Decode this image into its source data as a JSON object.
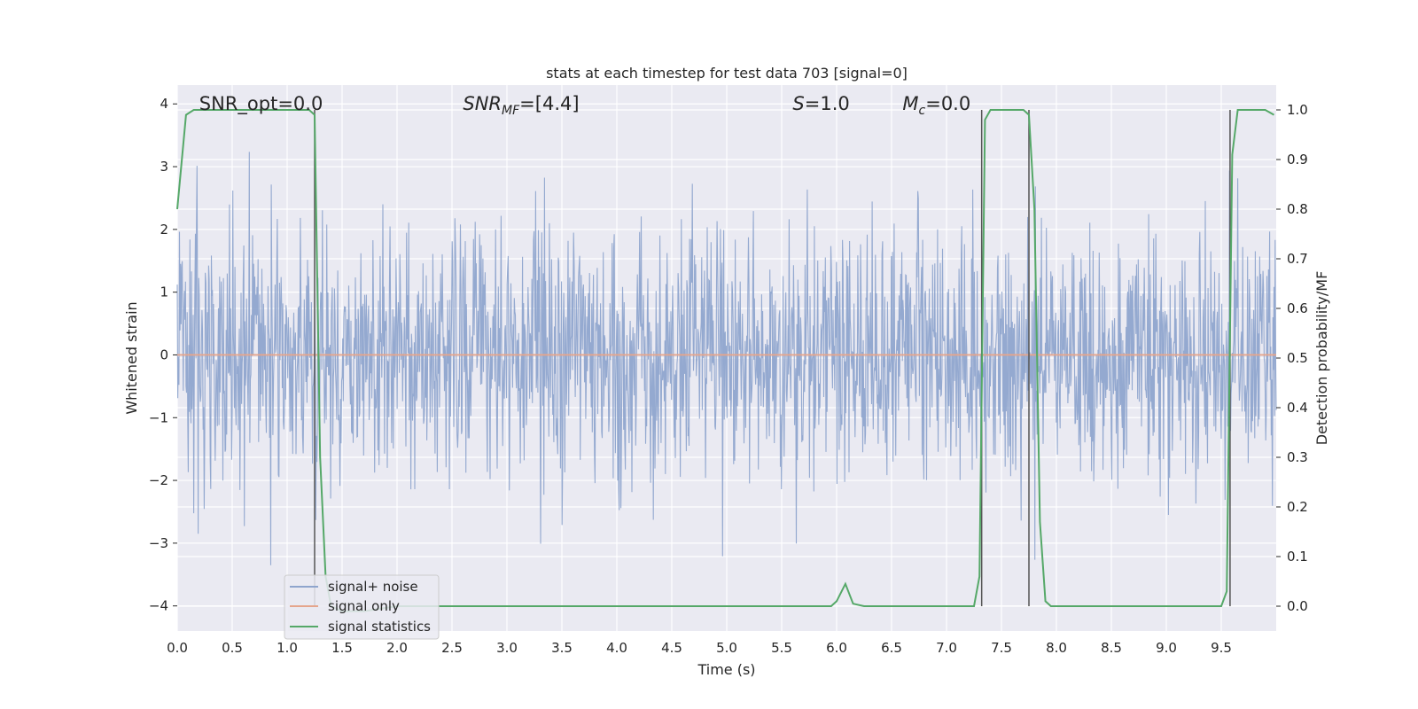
{
  "chart_data": {
    "type": "line",
    "title": "stats at each timestep for test data 703 [signal=0]",
    "xlabel": "Time (s)",
    "ylabel": "Whitened strain",
    "y2label": "Detection probability/MF",
    "xlim": [
      0.0,
      10.0
    ],
    "ylim": [
      -4.4,
      4.3
    ],
    "y2lim": [
      -0.05,
      1.05
    ],
    "xticks": [
      0.0,
      0.5,
      1.0,
      1.5,
      2.0,
      2.5,
      3.0,
      3.5,
      4.0,
      4.5,
      5.0,
      5.5,
      6.0,
      6.5,
      7.0,
      7.5,
      8.0,
      8.5,
      9.0,
      9.5
    ],
    "xtick_labels": [
      "0.0",
      "0.5",
      "1.0",
      "1.5",
      "2.0",
      "2.5",
      "3.0",
      "3.5",
      "4.0",
      "4.5",
      "5.0",
      "5.5",
      "6.0",
      "6.5",
      "7.0",
      "7.5",
      "8.0",
      "8.5",
      "9.0",
      "9.5"
    ],
    "yticks": [
      -4,
      -3,
      -2,
      -1,
      0,
      1,
      2,
      3,
      4
    ],
    "ytick_labels": [
      "−4",
      "−3",
      "−2",
      "−1",
      "0",
      "1",
      "2",
      "3",
      "4"
    ],
    "y2ticks": [
      0.0,
      0.1,
      0.2,
      0.3,
      0.4,
      0.5,
      0.6,
      0.7,
      0.8,
      0.9,
      1.0
    ],
    "y2tick_labels": [
      "0.0",
      "0.1",
      "0.2",
      "0.3",
      "0.4",
      "0.5",
      "0.6",
      "0.7",
      "0.8",
      "0.9",
      "1.0"
    ],
    "grid": true,
    "legend_placement": "lower-left",
    "annotations": [
      {
        "text": "SNR_opt=0.0",
        "x": 0.2
      },
      {
        "text_main": "SNR",
        "text_sub": "MF",
        "text_after": "=[4.4]",
        "x": 2.6
      },
      {
        "text_main": "S",
        "text_sub": "",
        "text_after": "=1.0",
        "x": 5.6
      },
      {
        "text_main": "M",
        "text_sub": "c",
        "text_after": "=0.0",
        "x": 6.6
      }
    ],
    "series": [
      {
        "name": "signal+ noise",
        "color": "#8fa5cd",
        "kind": "noise",
        "n_samples": 2000,
        "std": 1.0,
        "axis": "left"
      },
      {
        "name": "signal only",
        "color": "#e5a58c",
        "kind": "constant",
        "value": 0.0,
        "axis": "left"
      },
      {
        "name": "signal statistics",
        "color": "#55a868",
        "kind": "line",
        "axis": "right",
        "x": [
          0.0,
          0.08,
          0.15,
          0.3,
          1.1,
          1.2,
          1.25,
          1.3,
          1.35,
          1.4,
          1.5,
          1.7,
          2.0,
          2.7,
          3.5,
          4.5,
          5.5,
          5.95,
          6.0,
          6.08,
          6.15,
          6.25,
          7.0,
          7.25,
          7.3,
          7.35,
          7.4,
          7.45,
          7.7,
          7.75,
          7.8,
          7.85,
          7.9,
          7.95,
          8.0,
          8.2,
          9.0,
          9.5,
          9.55,
          9.6,
          9.65,
          9.7,
          9.9,
          9.98
        ],
        "y": [
          0.8,
          0.99,
          1.0,
          1.0,
          1.0,
          1.0,
          0.99,
          0.3,
          0.06,
          0.0,
          -0.01,
          -0.01,
          0.0,
          0.0,
          0.0,
          0.0,
          0.0,
          0.0,
          0.01,
          0.045,
          0.005,
          0.0,
          0.0,
          0.0,
          0.06,
          0.98,
          1.0,
          1.0,
          1.0,
          0.99,
          0.8,
          0.17,
          0.01,
          0.0,
          0.0,
          0.0,
          0.0,
          0.0,
          0.03,
          0.91,
          1.0,
          1.0,
          1.0,
          0.99
        ]
      }
    ],
    "vlines": [
      {
        "x": 1.25,
        "y2_from": 0.0,
        "y2_to": 1.0
      },
      {
        "x": 7.32,
        "y2_from": 0.0,
        "y2_to": 1.0
      },
      {
        "x": 7.75,
        "y2_from": 0.0,
        "y2_to": 1.0
      },
      {
        "x": 9.58,
        "y2_from": 0.0,
        "y2_to": 1.0
      }
    ]
  }
}
